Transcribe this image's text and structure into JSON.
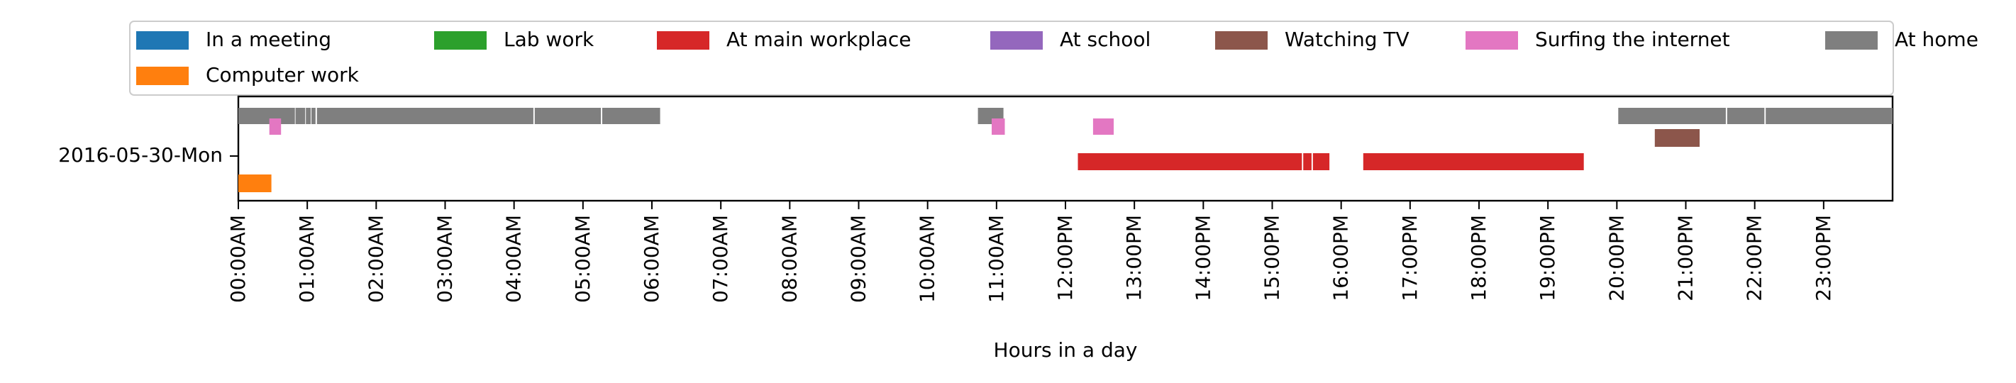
{
  "chart_data": {
    "type": "timeline",
    "xlabel": "Hours in a day",
    "row_label": "2016-05-30-Mon",
    "x_range_hours": [
      0,
      24
    ],
    "x_ticks": [
      "00:00AM",
      "01:00AM",
      "02:00AM",
      "03:00AM",
      "04:00AM",
      "05:00AM",
      "06:00AM",
      "07:00AM",
      "08:00AM",
      "09:00AM",
      "10:00AM",
      "11:00AM",
      "12:00PM",
      "13:00PM",
      "14:00PM",
      "15:00PM",
      "16:00PM",
      "17:00PM",
      "18:00PM",
      "19:00PM",
      "20:00PM",
      "21:00PM",
      "22:00PM",
      "23:00PM"
    ],
    "legend_placement": "top",
    "legend": [
      {
        "name": "In a meeting",
        "color": "#1f77b4"
      },
      {
        "name": "Lab work",
        "color": "#2ca02c"
      },
      {
        "name": "At main workplace",
        "color": "#d62728"
      },
      {
        "name": "At school",
        "color": "#9467bd"
      },
      {
        "name": "Watching TV",
        "color": "#8c564b"
      },
      {
        "name": "Surfing the internet",
        "color": "#e377c2"
      },
      {
        "name": "At home",
        "color": "#7f7f7f"
      },
      {
        "name": "Computer work",
        "color": "#ff7f0e"
      }
    ],
    "series": [
      {
        "name": "At home",
        "color": "#7f7f7f",
        "intervals": [
          [
            0.0,
            0.82
          ],
          [
            0.83,
            0.97
          ],
          [
            0.98,
            1.05
          ],
          [
            1.06,
            1.12
          ],
          [
            1.14,
            4.28
          ],
          [
            4.3,
            5.26
          ],
          [
            5.28,
            6.12
          ],
          [
            10.73,
            11.1
          ],
          [
            20.02,
            21.58
          ],
          [
            21.6,
            22.14
          ],
          [
            22.16,
            24.0
          ]
        ]
      },
      {
        "name": "Surfing the internet",
        "color": "#e377c2",
        "intervals": [
          [
            0.45,
            0.62
          ],
          [
            10.93,
            11.12
          ],
          [
            12.4,
            12.7
          ]
        ]
      },
      {
        "name": "Watching TV",
        "color": "#8c564b",
        "intervals": [
          [
            20.55,
            21.2
          ]
        ]
      },
      {
        "name": "At main workplace",
        "color": "#d62728",
        "intervals": [
          [
            12.18,
            15.43
          ],
          [
            15.45,
            15.57
          ],
          [
            15.59,
            15.83
          ],
          [
            16.32,
            19.52
          ]
        ]
      },
      {
        "name": "Computer work",
        "color": "#ff7f0e",
        "intervals": [
          [
            0.0,
            0.48
          ]
        ]
      }
    ]
  }
}
